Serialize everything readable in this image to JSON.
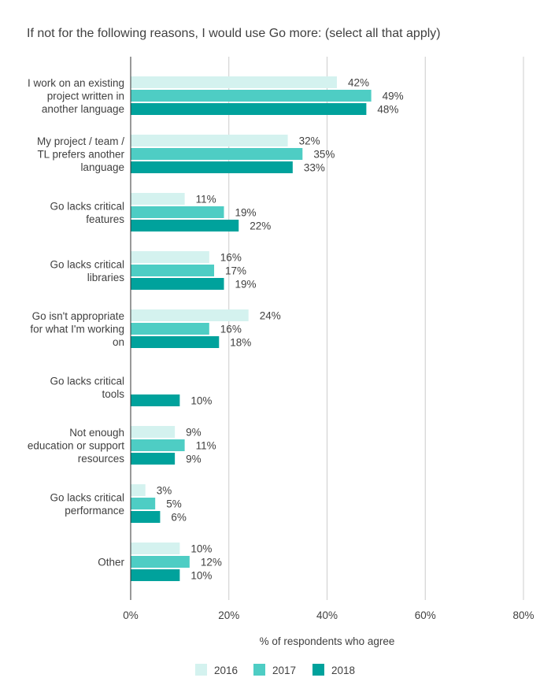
{
  "chart_data": {
    "type": "bar",
    "orientation": "horizontal",
    "title": "If not for the following reasons, I would use Go more: (select all that apply)",
    "xlabel": "% of respondents who agree",
    "ylabel": "",
    "xlim": [
      0,
      80
    ],
    "x_ticks": [
      "0%",
      "20%",
      "40%",
      "60%",
      "80%"
    ],
    "x_tick_values": [
      0,
      20,
      40,
      60,
      80
    ],
    "grid": true,
    "legend_position": "bottom",
    "categories": [
      [
        "I work on an existing",
        "project written in",
        "another language"
      ],
      [
        "My project / team /",
        "TL prefers another",
        "language"
      ],
      [
        "Go lacks critical",
        "features"
      ],
      [
        "Go lacks critical",
        "libraries"
      ],
      [
        "Go isn't appropriate",
        "for what I'm working",
        "on"
      ],
      [
        "Go lacks critical",
        "tools"
      ],
      [
        "Not enough",
        "education or support",
        "resources"
      ],
      [
        "Go lacks critical",
        "performance"
      ],
      [
        "Other"
      ]
    ],
    "series": [
      {
        "name": "2016",
        "color": "#d4f2ef",
        "values": [
          42,
          32,
          11,
          16,
          24,
          null,
          9,
          3,
          10
        ],
        "labels": [
          "42%",
          "32%",
          "11%",
          "16%",
          "24%",
          "",
          "9%",
          "3%",
          "10%"
        ]
      },
      {
        "name": "2017",
        "color": "#4ecdc4",
        "values": [
          49,
          35,
          19,
          17,
          16,
          null,
          11,
          5,
          12
        ],
        "labels": [
          "49%",
          "35%",
          "19%",
          "17%",
          "16%",
          "",
          "11%",
          "5%",
          "12%"
        ]
      },
      {
        "name": "2018",
        "color": "#00a29c",
        "values": [
          48,
          33,
          22,
          19,
          18,
          10,
          9,
          6,
          10
        ],
        "labels": [
          "48%",
          "33%",
          "22%",
          "19%",
          "18%",
          "10%",
          "9%",
          "6%",
          "10%"
        ]
      }
    ]
  }
}
